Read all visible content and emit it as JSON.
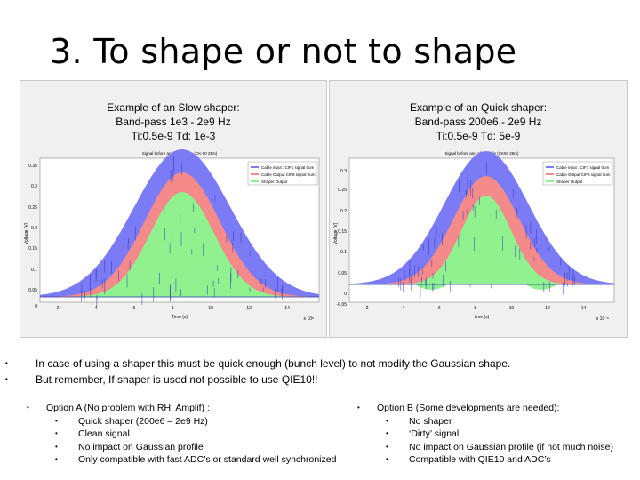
{
  "slide": {
    "title": "3. To shape or not to shape"
  },
  "panels": [
    {
      "heading": [
        "Example of an Slow shaper:",
        "Band-pass 1e3 - 2e9 Hz",
        "Ti:0.5e-9    Td: 1e-3"
      ],
      "plot_title": "Signal before and after cable (CK-50 25m)",
      "legend": [
        "Cable input : CIF1 signal    0um",
        "Cable Output  CIF8 signal   0um",
        "Shaper Output"
      ],
      "y_ticks": [
        "0.35",
        "0.3",
        "0.25",
        "0.2",
        "0.15",
        "0.1",
        "0.05",
        "0"
      ],
      "x_ticks": [
        "2",
        "4",
        "6",
        "8",
        "10",
        "12",
        "14"
      ],
      "ylabel": "Voltage [V]",
      "xlabel": "Time (s)",
      "x_exp": "x 10⁸"
    },
    {
      "heading": [
        "Example of an Quick shaper:",
        "Band-pass 200e6 - 2e9 Hz",
        "Ti:0.5e-9    Td: 5e-9"
      ],
      "plot_title": "Signal before and after cable (CK50 25m)",
      "legend": [
        "Cable input : CIF1 signal   0um",
        "Cable Output  CIF8 signal   0um",
        "Shaper Output"
      ],
      "y_ticks": [
        "0.3",
        "0.25",
        "0.2",
        "0.15",
        "0.1",
        "0.05",
        "0",
        "-0.05"
      ],
      "x_ticks": [
        "2",
        "4",
        "6",
        "8",
        "10",
        "12",
        "14"
      ],
      "ylabel": "Voltage [V]",
      "xlabel": "time (s)",
      "x_exp": "x 10⁻⁸"
    }
  ],
  "bullets": [
    "In case of using a shaper this must be quick enough (bunch level) to not modify the Gaussian shape.",
    "But remember, If shaper is used not possible to use QIE10!!"
  ],
  "option_a": {
    "title": "Option A (No problem with RH. Amplif) :",
    "items": [
      "Quick shaper (200e6 – 2e9 Hz)",
      "Clean signal",
      "No impact on Gaussian profile",
      "Only compatible with fast ADC’s or standard well synchronized"
    ]
  },
  "option_b": {
    "title": "Option B (Some developments are needed):",
    "items": [
      "No shaper",
      "‘Dirty’ signal",
      "No impact on Gaussian profile (if not much noise)",
      "Compatible with QIE10 and ADC’s"
    ]
  },
  "bullet_glyph": "•",
  "colors": {
    "cable_input": "#7b7bf5",
    "cable_output": "#f58a8a",
    "shaper_output": "#8ff28f",
    "noise": "#2f2fb8"
  }
}
